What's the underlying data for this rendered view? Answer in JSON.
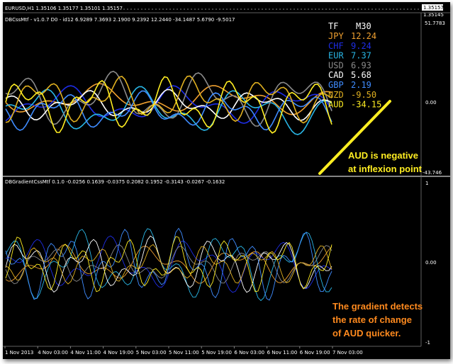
{
  "window": {
    "symbol_header": "EURUSD,H1  1.35106 1.35177 1.35101 1.35157",
    "price_top": "1.35157",
    "price_second": "1.35145"
  },
  "indicator1": {
    "title": "DBCssMtf - v1.0.7 D0 - id12 6.9289 7.3693 2.1900 9.2392 12.2440 -34.1487 5.6790 -9.5017",
    "axis_top": "51.7783",
    "axis_mid": "0.00",
    "axis_bottom": "-43.746"
  },
  "strength_table": {
    "header_label": "TF",
    "header_value": "M30",
    "rows": [
      {
        "cur": "JPY",
        "val": "12.24",
        "color": "#f0a030"
      },
      {
        "cur": "CHF",
        "val": "9.24",
        "color": "#1e2de6"
      },
      {
        "cur": "EUR",
        "val": "7.37",
        "color": "#29b6e6"
      },
      {
        "cur": "USD",
        "val": "6.93",
        "color": "#8a8a8a"
      },
      {
        "cur": "CAD",
        "val": "5.68",
        "color": "#ffffff"
      },
      {
        "cur": "GBP",
        "val": "2.19",
        "color": "#3f8cff"
      },
      {
        "cur": "NZD",
        "val": "-9.50",
        "color": "#e0b020"
      },
      {
        "cur": "AUD",
        "val": "-34.15",
        "color": "#ffee22"
      }
    ]
  },
  "annotations": {
    "aud_note": [
      "AUD is negative",
      "at inflexion point"
    ],
    "gradient_note": [
      "The gradient detects",
      "the rate of change",
      "of AUD quicker."
    ]
  },
  "indicator2": {
    "title": "DBGradientCssMtf 0.1.0 -0.0256 0.1639 -0.0375 0.2082 0.1952 -0.3143 -0.0267 -0.1632",
    "axis_top": "1",
    "axis_mid": "0.00",
    "axis_bottom": "-1"
  },
  "time_axis": [
    "1 Nov 2013",
    "4 Nov 03:00",
    "4 Nov 11:00",
    "4 Nov 19:00",
    "5 Nov 03:00",
    "5 Nov 11:00",
    "5 Nov 19:00",
    "6 Nov 03:00",
    "6 Nov 11:00",
    "6 Nov 19:00",
    "7 Nov 03:00"
  ],
  "colors": {
    "background": "#000000",
    "separator": "#b0b0b0",
    "aud_note": "#ffee22",
    "gradient_note": "#ff8a1e"
  }
}
